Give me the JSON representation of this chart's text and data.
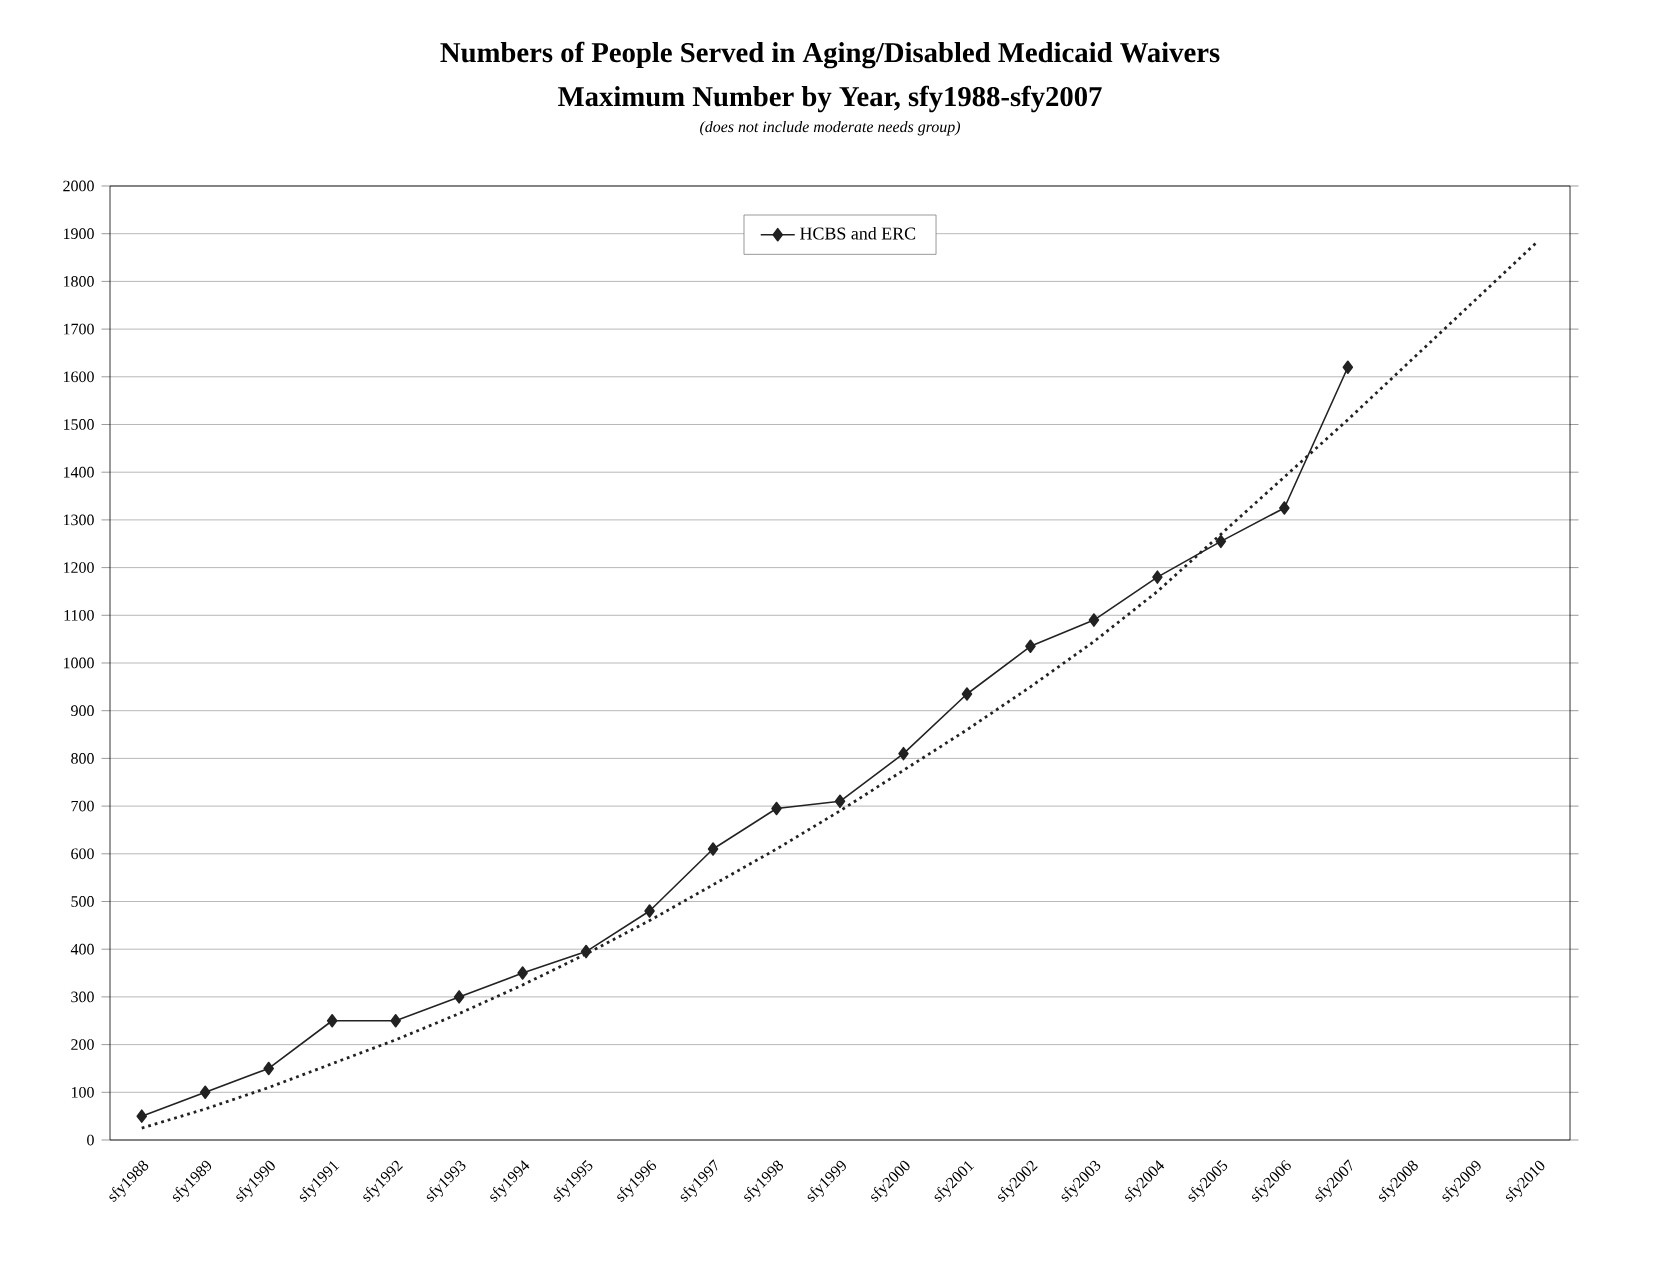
{
  "chart_data": {
    "type": "line",
    "title": "Numbers of People Served in Aging/Disabled Medicaid Waivers",
    "subtitle": "Maximum Number by Year, sfy1988-sfy2007",
    "annotations": [
      "(does not include moderate needs group)"
    ],
    "categories": [
      "sfy1988",
      "sfy1989",
      "sfy1990",
      "sfy1991",
      "sfy1992",
      "sfy1993",
      "sfy1994",
      "sfy1995",
      "sfy1996",
      "sfy1997",
      "sfy1998",
      "sfy1999",
      "sfy2000",
      "sfy2001",
      "sfy2002",
      "sfy2003",
      "sfy2004",
      "sfy2005",
      "sfy2006",
      "sfy2007",
      "sfy2008",
      "sfy2009",
      "sfy2010"
    ],
    "series": [
      {
        "name": "HCBS and ERC",
        "color": "#222222",
        "marker": "diamond",
        "line_style": "solid",
        "values": [
          50,
          100,
          150,
          250,
          250,
          300,
          350,
          395,
          480,
          610,
          695,
          710,
          810,
          935,
          1035,
          1090,
          1180,
          1255,
          1325,
          1620,
          null,
          null,
          null
        ]
      },
      {
        "color": "#222222",
        "marker": "none",
        "line_style": "dotted",
        "values": [
          25,
          65,
          110,
          160,
          210,
          265,
          325,
          390,
          460,
          535,
          610,
          690,
          775,
          860,
          950,
          1045,
          1150,
          1270,
          1390,
          1510,
          1635,
          1760,
          1885
        ]
      }
    ],
    "ylim": [
      0,
      2000
    ],
    "yticks": [
      0,
      100,
      200,
      300,
      400,
      500,
      600,
      700,
      800,
      900,
      1000,
      1100,
      1200,
      1300,
      1400,
      1500,
      1600,
      1700,
      1800,
      1900,
      2000
    ],
    "grid": "y",
    "legend": "top"
  }
}
